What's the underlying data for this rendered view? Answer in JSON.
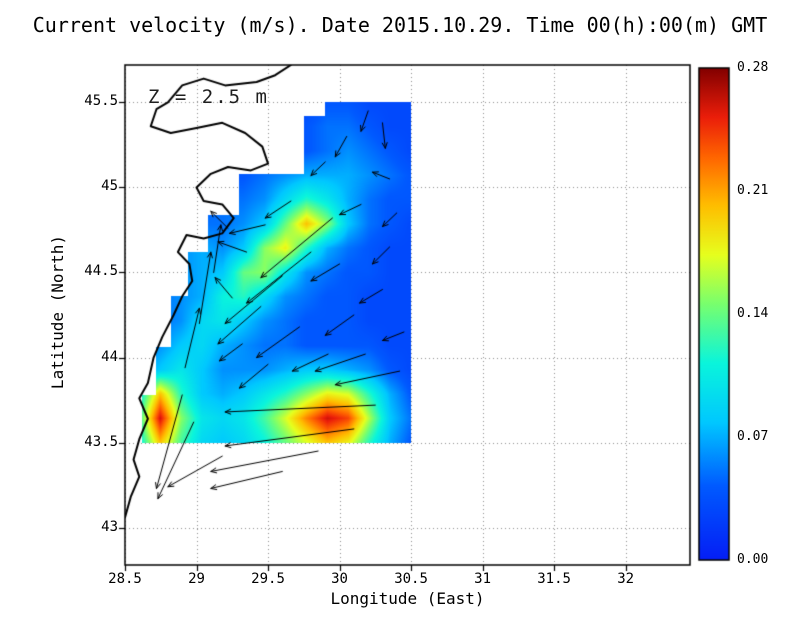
{
  "title": "Current velocity (m/s). Date 2015.10.29. Time 00(h):00(m) GMT",
  "annotation": "Z = 2.5 m",
  "chart_data": {
    "type": "heatmap",
    "overlay": "quiver",
    "title": "Current velocity (m/s). Date 2015.10.29. Time 00(h):00(m) GMT",
    "xlabel": "Longitude (East)",
    "ylabel": "Latitude (North)",
    "xlim": [
      28.5,
      32.45
    ],
    "ylim": [
      42.78,
      45.72
    ],
    "grid_on": true,
    "x_ticks": [
      {
        "v": 28.5,
        "label": "28.5"
      },
      {
        "v": 29,
        "label": "29"
      },
      {
        "v": 29.5,
        "label": "29.5"
      },
      {
        "v": 30,
        "label": "30"
      },
      {
        "v": 30.5,
        "label": "30.5"
      },
      {
        "v": 31,
        "label": "31"
      },
      {
        "v": 31.5,
        "label": "31.5"
      },
      {
        "v": 32,
        "label": "32"
      }
    ],
    "y_ticks": [
      {
        "v": 43,
        "label": "43"
      },
      {
        "v": 43.5,
        "label": "43.5"
      },
      {
        "v": 44,
        "label": "44"
      },
      {
        "v": 44.5,
        "label": "44.5"
      },
      {
        "v": 45,
        "label": "45"
      },
      {
        "v": 45.5,
        "label": "45.5"
      }
    ],
    "colorbar": {
      "min": 0.0,
      "max": 0.28,
      "position": "right",
      "ticks": [
        {
          "v": 0.0,
          "label": "0.00"
        },
        {
          "v": 0.07,
          "label": "0.07"
        },
        {
          "v": 0.14,
          "label": "0.14"
        },
        {
          "v": 0.21,
          "label": "0.21"
        },
        {
          "v": 0.28,
          "label": "0.28"
        }
      ]
    },
    "colors": {
      "background": "#ffffff",
      "coastline": "#000000",
      "arrows": "#000000",
      "axes_box": "#000000"
    },
    "colormap": [
      [
        0.0,
        5,
        30,
        245
      ],
      [
        0.15,
        0,
        90,
        255
      ],
      [
        0.28,
        0,
        200,
        255
      ],
      [
        0.4,
        10,
        245,
        220
      ],
      [
        0.52,
        120,
        255,
        110
      ],
      [
        0.62,
        230,
        255,
        30
      ],
      [
        0.72,
        255,
        190,
        0
      ],
      [
        0.82,
        255,
        100,
        0
      ],
      [
        0.9,
        235,
        30,
        10
      ],
      [
        1.0,
        130,
        0,
        0
      ]
    ],
    "velocity_grid": {
      "units": "m/s",
      "lon_min": 28.6,
      "lon_max": 30.5,
      "lat_min": 43.5,
      "lat_max": 45.5,
      "rows_top_to_bottom": [
        [
          0.03,
          0.03,
          0.03,
          0.03,
          0.03,
          0.03,
          0.03,
          0.03,
          0.03,
          0.04,
          0.04,
          0.03,
          0.03,
          0.03
        ],
        [
          0.03,
          0.03,
          0.03,
          0.03,
          0.03,
          0.03,
          0.03,
          0.03,
          0.04,
          0.05,
          0.05,
          0.04,
          0.03,
          0.03
        ],
        [
          0.03,
          0.03,
          0.03,
          0.03,
          0.03,
          0.03,
          0.03,
          0.04,
          0.04,
          0.05,
          0.06,
          0.05,
          0.04,
          0.03
        ],
        [
          0.03,
          0.03,
          0.03,
          0.03,
          0.04,
          0.04,
          0.05,
          0.06,
          0.07,
          0.07,
          0.07,
          0.06,
          0.05,
          0.04
        ],
        [
          0.04,
          0.04,
          0.04,
          0.04,
          0.05,
          0.05,
          0.06,
          0.09,
          0.12,
          0.1,
          0.07,
          0.05,
          0.04,
          0.04
        ],
        [
          0.04,
          0.05,
          0.05,
          0.05,
          0.05,
          0.06,
          0.08,
          0.14,
          0.2,
          0.15,
          0.08,
          0.05,
          0.04,
          0.03
        ],
        [
          0.04,
          0.05,
          0.06,
          0.07,
          0.06,
          0.08,
          0.15,
          0.18,
          0.12,
          0.07,
          0.05,
          0.04,
          0.03,
          0.03
        ],
        [
          0.04,
          0.05,
          0.06,
          0.07,
          0.08,
          0.14,
          0.15,
          0.1,
          0.06,
          0.05,
          0.04,
          0.04,
          0.03,
          0.03
        ],
        [
          0.04,
          0.05,
          0.06,
          0.07,
          0.11,
          0.12,
          0.09,
          0.06,
          0.05,
          0.04,
          0.04,
          0.03,
          0.03,
          0.03
        ],
        [
          0.04,
          0.05,
          0.06,
          0.09,
          0.1,
          0.08,
          0.06,
          0.05,
          0.04,
          0.04,
          0.04,
          0.03,
          0.03,
          0.03
        ],
        [
          0.05,
          0.06,
          0.08,
          0.09,
          0.07,
          0.06,
          0.05,
          0.05,
          0.04,
          0.04,
          0.04,
          0.04,
          0.03,
          0.03
        ],
        [
          0.06,
          0.08,
          0.1,
          0.08,
          0.06,
          0.06,
          0.06,
          0.07,
          0.08,
          0.08,
          0.07,
          0.06,
          0.04,
          0.03
        ],
        [
          0.1,
          0.2,
          0.12,
          0.08,
          0.07,
          0.08,
          0.1,
          0.12,
          0.15,
          0.18,
          0.17,
          0.12,
          0.07,
          0.04
        ],
        [
          0.12,
          0.26,
          0.15,
          0.1,
          0.09,
          0.1,
          0.13,
          0.17,
          0.22,
          0.26,
          0.24,
          0.16,
          0.08,
          0.05
        ],
        [
          0.1,
          0.2,
          0.13,
          0.09,
          0.08,
          0.09,
          0.11,
          0.14,
          0.17,
          0.2,
          0.18,
          0.12,
          0.07,
          0.04
        ]
      ]
    },
    "mask_polygon": [
      [
        28.62,
        43.5
      ],
      [
        28.62,
        43.78
      ],
      [
        28.72,
        43.78
      ],
      [
        28.72,
        44.06
      ],
      [
        28.82,
        44.06
      ],
      [
        28.82,
        44.36
      ],
      [
        28.94,
        44.36
      ],
      [
        28.94,
        44.62
      ],
      [
        29.08,
        44.62
      ],
      [
        29.08,
        44.84
      ],
      [
        29.3,
        44.84
      ],
      [
        29.3,
        45.08
      ],
      [
        29.75,
        45.08
      ],
      [
        29.75,
        45.42
      ],
      [
        29.9,
        45.42
      ],
      [
        29.9,
        45.5
      ],
      [
        30.5,
        45.5
      ],
      [
        30.5,
        43.5
      ]
    ],
    "coastline": [
      [
        29.66,
        45.72
      ],
      [
        29.55,
        45.66
      ],
      [
        29.42,
        45.62
      ],
      [
        29.2,
        45.6
      ],
      [
        29.05,
        45.64
      ],
      [
        28.9,
        45.6
      ],
      [
        28.8,
        45.5
      ],
      [
        28.72,
        45.46
      ],
      [
        28.68,
        45.36
      ],
      [
        28.82,
        45.32
      ],
      [
        29.0,
        45.35
      ],
      [
        29.18,
        45.38
      ],
      [
        29.34,
        45.32
      ],
      [
        29.46,
        45.24
      ],
      [
        29.5,
        45.14
      ],
      [
        29.38,
        45.1
      ],
      [
        29.22,
        45.12
      ],
      [
        29.1,
        45.08
      ],
      [
        29.0,
        45.0
      ],
      [
        29.05,
        44.92
      ],
      [
        29.18,
        44.9
      ],
      [
        29.26,
        44.82
      ],
      [
        29.18,
        44.73
      ],
      [
        29.05,
        44.7
      ],
      [
        28.93,
        44.72
      ],
      [
        28.87,
        44.62
      ],
      [
        28.95,
        44.55
      ],
      [
        28.97,
        44.45
      ],
      [
        28.9,
        44.36
      ],
      [
        28.84,
        44.25
      ],
      [
        28.76,
        44.12
      ],
      [
        28.7,
        44.0
      ],
      [
        28.66,
        43.85
      ],
      [
        28.6,
        43.76
      ],
      [
        28.66,
        43.64
      ],
      [
        28.6,
        43.52
      ],
      [
        28.56,
        43.4
      ],
      [
        28.6,
        43.3
      ],
      [
        28.54,
        43.18
      ],
      [
        28.5,
        43.06
      ]
    ],
    "arrows": [
      [
        30.25,
        43.72,
        -1.05,
        -0.04
      ],
      [
        30.1,
        43.58,
        -0.9,
        -0.1
      ],
      [
        29.85,
        43.45,
        -0.75,
        -0.12
      ],
      [
        29.6,
        43.33,
        -0.5,
        -0.1
      ],
      [
        29.18,
        43.42,
        -0.38,
        -0.18
      ],
      [
        28.98,
        43.62,
        -0.25,
        -0.45
      ],
      [
        28.9,
        43.78,
        -0.18,
        -0.55
      ],
      [
        30.42,
        43.92,
        -0.45,
        -0.08
      ],
      [
        30.18,
        44.02,
        -0.35,
        -0.1
      ],
      [
        29.95,
        44.82,
        -0.5,
        -0.35
      ],
      [
        29.8,
        44.62,
        -0.45,
        -0.3
      ],
      [
        29.6,
        44.48,
        -0.4,
        -0.28
      ],
      [
        29.45,
        44.3,
        -0.3,
        -0.22
      ],
      [
        29.72,
        44.18,
        -0.3,
        -0.18
      ],
      [
        29.02,
        44.2,
        0.08,
        0.42
      ],
      [
        28.92,
        43.94,
        0.1,
        0.35
      ],
      [
        29.12,
        44.5,
        0.05,
        0.28
      ],
      [
        30.3,
        45.38,
        0.02,
        -0.15
      ],
      [
        30.05,
        45.3,
        -0.08,
        -0.12
      ],
      [
        29.9,
        45.15,
        -0.1,
        -0.08
      ],
      [
        30.35,
        45.05,
        -0.12,
        0.04
      ],
      [
        30.15,
        44.9,
        -0.15,
        -0.06
      ],
      [
        30.35,
        44.65,
        -0.12,
        -0.1
      ],
      [
        30.3,
        44.4,
        -0.16,
        -0.08
      ],
      [
        30.1,
        44.25,
        -0.2,
        -0.12
      ],
      [
        29.92,
        44.02,
        -0.25,
        -0.1
      ],
      [
        29.5,
        43.96,
        -0.2,
        -0.14
      ],
      [
        29.32,
        44.08,
        -0.16,
        -0.1
      ],
      [
        29.35,
        44.62,
        -0.2,
        0.06
      ],
      [
        29.22,
        44.76,
        -0.12,
        0.1
      ],
      [
        29.48,
        44.78,
        -0.25,
        -0.05
      ],
      [
        30.45,
        44.15,
        -0.15,
        -0.05
      ],
      [
        29.66,
        44.92,
        -0.18,
        -0.1
      ],
      [
        30.0,
        44.55,
        -0.2,
        -0.1
      ],
      [
        29.25,
        44.35,
        -0.12,
        0.12
      ],
      [
        30.2,
        45.45,
        -0.05,
        -0.12
      ],
      [
        30.4,
        44.85,
        -0.1,
        -0.08
      ]
    ]
  }
}
